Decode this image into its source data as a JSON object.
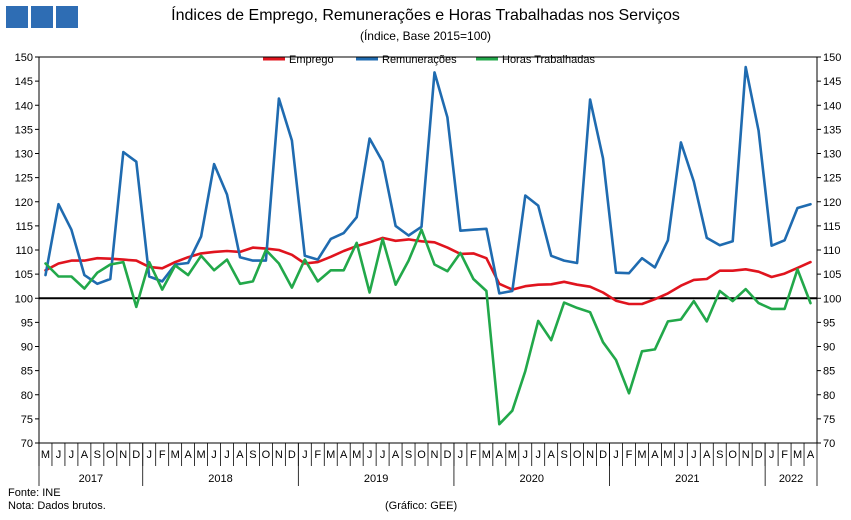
{
  "header": {
    "title": "Índices de Emprego, Remunerações e Horas Trabalhadas nos Serviços",
    "subtitle": "(Índice, Base 2015=100)"
  },
  "footer": {
    "source": "Fonte: INE",
    "note": "Nota: Dados brutos.",
    "credit": "(Gráfico: GEE)"
  },
  "chart_data": {
    "type": "line",
    "ylim": [
      70,
      150
    ],
    "yticks": [
      70,
      75,
      80,
      85,
      90,
      95,
      100,
      105,
      110,
      115,
      120,
      125,
      130,
      135,
      140,
      145,
      150
    ],
    "reference_line": 100,
    "legend_position": "top-center",
    "categories": [
      "M",
      "J",
      "J",
      "A",
      "S",
      "O",
      "N",
      "D",
      "J",
      "F",
      "M",
      "A",
      "M",
      "J",
      "J",
      "A",
      "S",
      "O",
      "N",
      "D",
      "J",
      "F",
      "M",
      "A",
      "M",
      "J",
      "J",
      "A",
      "S",
      "O",
      "N",
      "D",
      "J",
      "F",
      "M",
      "A",
      "M",
      "J",
      "J",
      "A",
      "S",
      "O",
      "N",
      "D",
      "J",
      "F",
      "M",
      "A",
      "M",
      "J",
      "J",
      "A",
      "S",
      "O",
      "N",
      "D",
      "J",
      "F",
      "M",
      "A"
    ],
    "years": [
      {
        "label": "2017",
        "count": 8
      },
      {
        "label": "2018",
        "count": 12
      },
      {
        "label": "2019",
        "count": 12
      },
      {
        "label": "2020",
        "count": 12
      },
      {
        "label": "2021",
        "count": 12
      },
      {
        "label": "2022",
        "count": 4
      }
    ],
    "series": [
      {
        "name": "Emprego",
        "color": "#e0141e",
        "values": [
          105.8,
          107.2,
          107.8,
          107.8,
          108.3,
          108.2,
          108.0,
          107.8,
          106.5,
          106.2,
          107.5,
          108.5,
          109.3,
          109.6,
          109.8,
          109.6,
          110.5,
          110.3,
          110.0,
          109.0,
          107.2,
          107.5,
          108.6,
          109.8,
          110.8,
          111.6,
          112.5,
          111.9,
          112.2,
          111.8,
          111.6,
          110.5,
          109.2,
          109.3,
          108.3,
          103.0,
          101.8,
          102.5,
          102.8,
          102.9,
          103.4,
          102.8,
          102.4,
          101.2,
          99.5,
          98.8,
          98.8,
          99.8,
          101.0,
          102.6,
          103.8,
          104.0,
          105.7,
          105.7,
          106.0,
          105.5,
          104.4,
          105.1,
          106.3,
          107.5
        ]
      },
      {
        "name": "Remunerações",
        "color": "#1f6bb0",
        "values": [
          104.8,
          119.5,
          114.2,
          104.8,
          103.0,
          104.0,
          130.3,
          128.3,
          104.5,
          103.5,
          107.0,
          107.3,
          112.8,
          127.8,
          121.5,
          108.5,
          107.8,
          107.8,
          141.4,
          132.7,
          108.8,
          108.0,
          112.3,
          113.5,
          116.8,
          133.1,
          128.3,
          115.0,
          113.0,
          114.8,
          146.8,
          137.5,
          114.0,
          114.2,
          114.4,
          101.0,
          101.5,
          121.3,
          119.2,
          108.8,
          107.8,
          107.3,
          141.2,
          129.0,
          105.3,
          105.2,
          108.3,
          106.4,
          112.0,
          132.3,
          124.2,
          112.5,
          111.0,
          111.8,
          147.9,
          134.7,
          110.9,
          112.0,
          118.7,
          119.5
        ]
      },
      {
        "name": "Horas Trabalhadas",
        "color": "#22a84a",
        "values": [
          107.2,
          104.5,
          104.5,
          102.0,
          105.3,
          107.0,
          107.5,
          98.2,
          107.5,
          101.8,
          106.8,
          104.8,
          108.8,
          105.8,
          108.0,
          103.0,
          103.5,
          110.0,
          107.2,
          102.2,
          108.0,
          103.5,
          105.8,
          105.8,
          111.5,
          101.2,
          112.3,
          102.8,
          107.8,
          114.2,
          107.0,
          105.6,
          109.4,
          104.0,
          101.5,
          73.9,
          76.7,
          84.9,
          95.3,
          91.3,
          99.1,
          98.0,
          97.1,
          90.9,
          87.2,
          80.3,
          89.0,
          89.4,
          95.2,
          95.6,
          99.4,
          95.2,
          101.5,
          99.4,
          101.9,
          99.0,
          97.8,
          97.8,
          106.0,
          99.0
        ]
      }
    ]
  }
}
